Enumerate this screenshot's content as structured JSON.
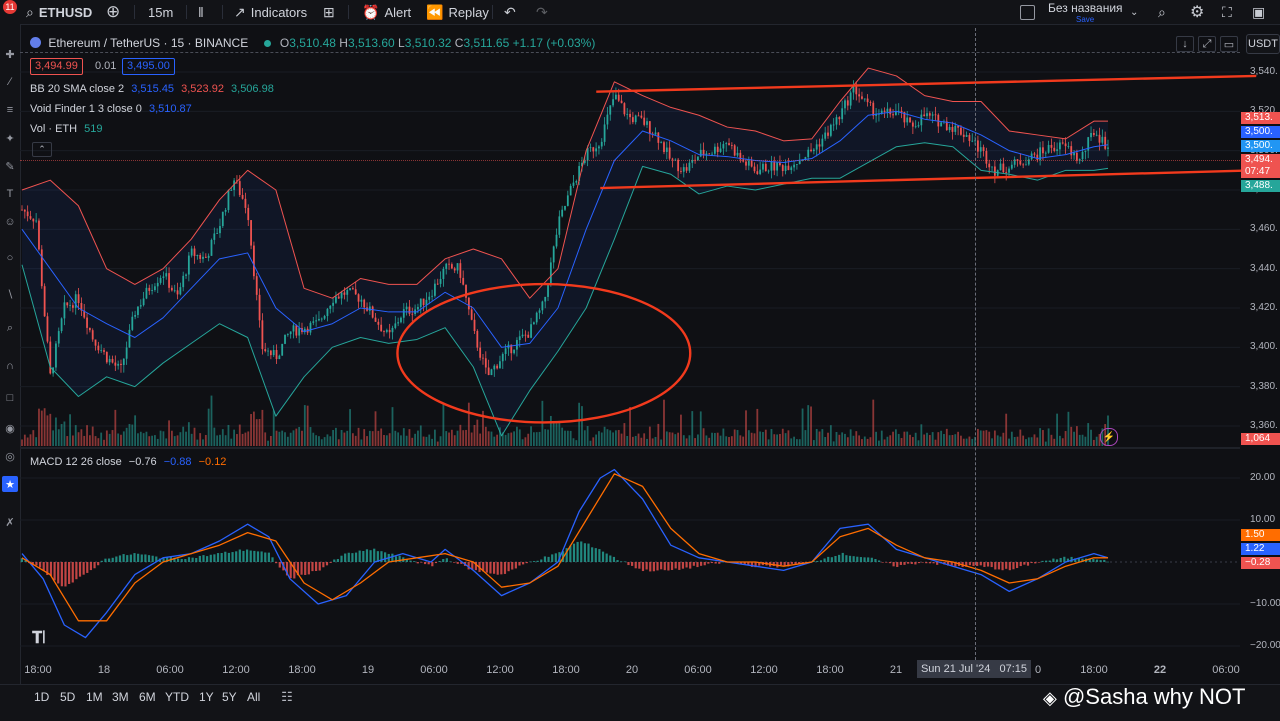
{
  "toolbar": {
    "badge": "11",
    "symbol": "ETHUSD",
    "interval": "15m",
    "indicators": "Indicators",
    "alert": "Alert",
    "replay": "Replay",
    "layout_name": "Без названия",
    "layout_save": "Save"
  },
  "legend": {
    "title": "Ethereum / TetherUS · 15 · BINANCE",
    "o_label": "O",
    "o_val": "3,510.48",
    "h_label": "H",
    "h_val": "3,513.60",
    "l_label": "L",
    "l_val": "3,510.32",
    "c_label": "C",
    "c_val": "3,511.65",
    "change": "+1.17 (+0.03%)",
    "sell_price": "3,494.99",
    "spread": "0.01",
    "buy_price": "3,495.00",
    "bb_label": "BB 20 SMA close 2",
    "bb_mid": "3,515.45",
    "bb_up": "3,523.92",
    "bb_low": "3,506.98",
    "vf_label": "Void Finder 1 3 close 0",
    "vf_val": "3,510.87",
    "vol_label": "Vol · ETH",
    "vol_val": "519",
    "macd_label": "MACD 12 26 close",
    "macd_hist": "−0.76",
    "macd_line": "−0.88",
    "macd_signal": "−0.12",
    "currency": "USDT"
  },
  "price_labels": {
    "p1": "3,513.",
    "p2": "3,500.",
    "p3": "3,500.",
    "p4": "3,494.",
    "p5": "07:47",
    "p6": "3,488.",
    "vol": "1,064",
    "m1": "1.50",
    "m2": "1.22",
    "m3": "−0.28"
  },
  "crosshair_label": "Sun 21 Jul '24   07:15",
  "ranges": [
    "1D",
    "5D",
    "1M",
    "3M",
    "6M",
    "YTD",
    "1Y",
    "5Y",
    "All"
  ],
  "watermark": "@Sasha why NOT",
  "colors": {
    "up": "#26a69a",
    "down": "#ef5350",
    "bb_mid": "#2962ff",
    "bb_band": "#ef5350",
    "bb_band_low": "#26a69a",
    "macd": "#2962ff",
    "signal": "#ff6d00",
    "trend": "#f23a1d",
    "background": "#0f1014"
  },
  "chart_data": [
    {
      "type": "candlestick",
      "title": "Ethereum / TetherUS · 15 · BINANCE",
      "ylim": [
        3350,
        3550
      ],
      "yticks": [
        "3,540.",
        "3,520.",
        "3,500.",
        "3,480.",
        "3,460.",
        "3,440.",
        "3,420.",
        "3,400.",
        "3,380.",
        "3,360."
      ],
      "ytick_values": [
        3540,
        3520,
        3500,
        3480,
        3460,
        3440,
        3420,
        3400,
        3380,
        3360
      ],
      "xticks": [
        "18:00",
        "18",
        "06:00",
        "12:00",
        "18:00",
        "19",
        "06:00",
        "12:00",
        "18:00",
        "20",
        "06:00",
        "12:00",
        "18:00",
        "21",
        "0",
        "18:00",
        "22",
        "06:00"
      ],
      "close_path": [
        [
          0,
          3470
        ],
        [
          10,
          3465
        ],
        [
          20,
          3385
        ],
        [
          30,
          3420
        ],
        [
          40,
          3425
        ],
        [
          50,
          3405
        ],
        [
          60,
          3395
        ],
        [
          70,
          3388
        ],
        [
          80,
          3418
        ],
        [
          90,
          3430
        ],
        [
          100,
          3438
        ],
        [
          110,
          3425
        ],
        [
          120,
          3448
        ],
        [
          130,
          3445
        ],
        [
          140,
          3462
        ],
        [
          150,
          3486
        ],
        [
          160,
          3470
        ],
        [
          170,
          3400
        ],
        [
          180,
          3395
        ],
        [
          190,
          3408
        ],
        [
          200,
          3410
        ],
        [
          210,
          3412
        ],
        [
          220,
          3425
        ],
        [
          230,
          3428
        ],
        [
          240,
          3425
        ],
        [
          250,
          3415
        ],
        [
          260,
          3405
        ],
        [
          270,
          3418
        ],
        [
          280,
          3420
        ],
        [
          290,
          3428
        ],
        [
          300,
          3440
        ],
        [
          310,
          3440
        ],
        [
          320,
          3408
        ],
        [
          330,
          3385
        ],
        [
          340,
          3395
        ],
        [
          350,
          3402
        ],
        [
          360,
          3408
        ],
        [
          370,
          3422
        ],
        [
          380,
          3462
        ],
        [
          390,
          3482
        ],
        [
          400,
          3498
        ],
        [
          410,
          3505
        ],
        [
          420,
          3528
        ],
        [
          430,
          3517
        ],
        [
          440,
          3515
        ],
        [
          450,
          3508
        ],
        [
          460,
          3495
        ],
        [
          470,
          3490
        ],
        [
          480,
          3498
        ],
        [
          490,
          3500
        ],
        [
          500,
          3505
        ],
        [
          510,
          3495
        ],
        [
          520,
          3490
        ],
        [
          530,
          3492
        ],
        [
          540,
          3492
        ],
        [
          550,
          3495
        ],
        [
          560,
          3500
        ],
        [
          570,
          3508
        ],
        [
          580,
          3518
        ],
        [
          590,
          3532
        ],
        [
          600,
          3522
        ],
        [
          610,
          3518
        ],
        [
          620,
          3520
        ],
        [
          630,
          3512
        ],
        [
          640,
          3518
        ],
        [
          650,
          3515
        ],
        [
          660,
          3512
        ],
        [
          670,
          3508
        ],
        [
          680,
          3500
        ],
        [
          690,
          3490
        ],
        [
          700,
          3492
        ],
        [
          710,
          3495
        ],
        [
          720,
          3498
        ],
        [
          730,
          3502
        ],
        [
          740,
          3502
        ],
        [
          750,
          3495
        ],
        [
          760,
          3510
        ],
        [
          770,
          3502
        ]
      ],
      "bb_basis": [
        [
          0,
          3460
        ],
        [
          20,
          3440
        ],
        [
          40,
          3420
        ],
        [
          60,
          3412
        ],
        [
          80,
          3405
        ],
        [
          100,
          3415
        ],
        [
          120,
          3430
        ],
        [
          140,
          3445
        ],
        [
          160,
          3448
        ],
        [
          180,
          3420
        ],
        [
          200,
          3408
        ],
        [
          220,
          3412
        ],
        [
          240,
          3420
        ],
        [
          260,
          3418
        ],
        [
          280,
          3418
        ],
        [
          300,
          3428
        ],
        [
          320,
          3420
        ],
        [
          340,
          3400
        ],
        [
          360,
          3402
        ],
        [
          380,
          3420
        ],
        [
          400,
          3460
        ],
        [
          420,
          3495
        ],
        [
          440,
          3510
        ],
        [
          460,
          3505
        ],
        [
          480,
          3498
        ],
        [
          500,
          3497
        ],
        [
          520,
          3495
        ],
        [
          540,
          3494
        ],
        [
          560,
          3496
        ],
        [
          580,
          3505
        ],
        [
          600,
          3518
        ],
        [
          620,
          3520
        ],
        [
          640,
          3516
        ],
        [
          660,
          3514
        ],
        [
          680,
          3508
        ],
        [
          700,
          3500
        ],
        [
          720,
          3496
        ],
        [
          740,
          3498
        ],
        [
          760,
          3502
        ],
        [
          770,
          3503
        ]
      ],
      "bb_upper": [
        [
          0,
          3480
        ],
        [
          20,
          3485
        ],
        [
          40,
          3472
        ],
        [
          60,
          3440
        ],
        [
          80,
          3432
        ],
        [
          100,
          3440
        ],
        [
          120,
          3455
        ],
        [
          140,
          3475
        ],
        [
          160,
          3490
        ],
        [
          180,
          3480
        ],
        [
          200,
          3430
        ],
        [
          220,
          3425
        ],
        [
          240,
          3435
        ],
        [
          260,
          3432
        ],
        [
          280,
          3432
        ],
        [
          300,
          3445
        ],
        [
          320,
          3450
        ],
        [
          340,
          3445
        ],
        [
          360,
          3425
        ],
        [
          380,
          3440
        ],
        [
          400,
          3500
        ],
        [
          420,
          3535
        ],
        [
          440,
          3528
        ],
        [
          460,
          3522
        ],
        [
          480,
          3518
        ],
        [
          500,
          3512
        ],
        [
          520,
          3510
        ],
        [
          540,
          3505
        ],
        [
          560,
          3506
        ],
        [
          580,
          3525
        ],
        [
          600,
          3542
        ],
        [
          620,
          3538
        ],
        [
          640,
          3528
        ],
        [
          660,
          3525
        ],
        [
          680,
          3525
        ],
        [
          700,
          3510
        ],
        [
          720,
          3508
        ],
        [
          740,
          3506
        ],
        [
          760,
          3515
        ],
        [
          770,
          3515
        ]
      ],
      "bb_lower": [
        [
          0,
          3442
        ],
        [
          20,
          3390
        ],
        [
          40,
          3375
        ],
        [
          60,
          3385
        ],
        [
          80,
          3380
        ],
        [
          100,
          3392
        ],
        [
          120,
          3402
        ],
        [
          140,
          3412
        ],
        [
          160,
          3405
        ],
        [
          180,
          3365
        ],
        [
          200,
          3385
        ],
        [
          220,
          3400
        ],
        [
          240,
          3405
        ],
        [
          260,
          3402
        ],
        [
          280,
          3404
        ],
        [
          300,
          3410
        ],
        [
          320,
          3390
        ],
        [
          340,
          3355
        ],
        [
          360,
          3378
        ],
        [
          380,
          3398
        ],
        [
          400,
          3420
        ],
        [
          420,
          3455
        ],
        [
          440,
          3492
        ],
        [
          460,
          3488
        ],
        [
          480,
          3478
        ],
        [
          500,
          3482
        ],
        [
          520,
          3480
        ],
        [
          540,
          3483
        ],
        [
          560,
          3486
        ],
        [
          580,
          3486
        ],
        [
          600,
          3494
        ],
        [
          620,
          3502
        ],
        [
          640,
          3504
        ],
        [
          660,
          3502
        ],
        [
          680,
          3490
        ],
        [
          700,
          3488
        ],
        [
          720,
          3485
        ],
        [
          740,
          3490
        ],
        [
          760,
          3490
        ],
        [
          770,
          3491
        ]
      ],
      "trendlines": [
        {
          "from": [
            410,
            3530
          ],
          "to": [
            790,
            3538
          ]
        },
        {
          "from": [
            410,
            3481
          ],
          "to": [
            790,
            3490
          ]
        }
      ],
      "circle": {
        "center": [
          370,
          3397
        ],
        "radius_x": 48,
        "radius_y": 26
      }
    },
    {
      "type": "bar",
      "title": "Vol · ETH",
      "note": "volume histogram below price"
    },
    {
      "type": "line",
      "title": "MACD 12 26 close",
      "ylim": [
        -22,
        23
      ],
      "yticks": [
        "20.00",
        "10.00",
        "−10.00",
        "−20.00"
      ],
      "ytick_values": [
        20,
        10,
        -10,
        -20
      ],
      "macd_line": [
        [
          0,
          2
        ],
        [
          15,
          -4
        ],
        [
          30,
          -15
        ],
        [
          45,
          -18
        ],
        [
          60,
          -12
        ],
        [
          80,
          -3
        ],
        [
          100,
          1
        ],
        [
          120,
          2
        ],
        [
          140,
          5
        ],
        [
          160,
          9
        ],
        [
          175,
          6
        ],
        [
          190,
          -4
        ],
        [
          210,
          -10
        ],
        [
          230,
          -8
        ],
        [
          250,
          0
        ],
        [
          270,
          2
        ],
        [
          290,
          0
        ],
        [
          300,
          3
        ],
        [
          320,
          -2
        ],
        [
          340,
          -8
        ],
        [
          360,
          -5
        ],
        [
          380,
          0
        ],
        [
          395,
          12
        ],
        [
          410,
          20
        ],
        [
          420,
          22
        ],
        [
          440,
          15
        ],
        [
          460,
          4
        ],
        [
          480,
          1
        ],
        [
          500,
          0
        ],
        [
          520,
          -1
        ],
        [
          540,
          -2
        ],
        [
          560,
          0
        ],
        [
          580,
          8
        ],
        [
          600,
          9
        ],
        [
          620,
          3
        ],
        [
          640,
          1
        ],
        [
          660,
          -1
        ],
        [
          680,
          -3
        ],
        [
          700,
          -7
        ],
        [
          720,
          -4
        ],
        [
          740,
          0
        ],
        [
          760,
          2
        ],
        [
          770,
          1
        ]
      ],
      "signal_line": [
        [
          0,
          1
        ],
        [
          20,
          -3
        ],
        [
          40,
          -14
        ],
        [
          60,
          -14
        ],
        [
          80,
          -5
        ],
        [
          100,
          0
        ],
        [
          120,
          2
        ],
        [
          140,
          4
        ],
        [
          160,
          7
        ],
        [
          180,
          5
        ],
        [
          200,
          -5
        ],
        [
          220,
          -9
        ],
        [
          240,
          -5
        ],
        [
          260,
          0
        ],
        [
          280,
          1
        ],
        [
          300,
          2
        ],
        [
          320,
          0
        ],
        [
          340,
          -6
        ],
        [
          360,
          -5
        ],
        [
          380,
          -1
        ],
        [
          400,
          10
        ],
        [
          420,
          21
        ],
        [
          440,
          18
        ],
        [
          460,
          8
        ],
        [
          480,
          2
        ],
        [
          500,
          0
        ],
        [
          520,
          0
        ],
        [
          540,
          -1
        ],
        [
          560,
          0
        ],
        [
          580,
          6
        ],
        [
          600,
          8
        ],
        [
          620,
          4
        ],
        [
          640,
          1
        ],
        [
          660,
          0
        ],
        [
          680,
          -2
        ],
        [
          700,
          -5
        ],
        [
          720,
          -4
        ],
        [
          740,
          -1
        ],
        [
          760,
          1
        ],
        [
          770,
          1
        ]
      ],
      "histogram": [
        [
          0,
          1
        ],
        [
          15,
          -2
        ],
        [
          30,
          -6
        ],
        [
          45,
          -3
        ],
        [
          60,
          1
        ],
        [
          80,
          2
        ],
        [
          100,
          1
        ],
        [
          120,
          1
        ],
        [
          140,
          2
        ],
        [
          160,
          3
        ],
        [
          175,
          2
        ],
        [
          190,
          -4
        ],
        [
          210,
          -2
        ],
        [
          230,
          2
        ],
        [
          250,
          3
        ],
        [
          270,
          1
        ],
        [
          290,
          -1
        ],
        [
          300,
          1
        ],
        [
          320,
          -2
        ],
        [
          340,
          -3
        ],
        [
          360,
          0
        ],
        [
          380,
          2
        ],
        [
          395,
          5
        ],
        [
          410,
          3
        ],
        [
          420,
          1
        ],
        [
          440,
          -2
        ],
        [
          460,
          -2
        ],
        [
          480,
          -1
        ],
        [
          500,
          0
        ],
        [
          520,
          -1
        ],
        [
          540,
          -1
        ],
        [
          560,
          0
        ],
        [
          580,
          2
        ],
        [
          600,
          1
        ],
        [
          620,
          -1
        ],
        [
          640,
          0
        ],
        [
          660,
          -1
        ],
        [
          680,
          -1
        ],
        [
          700,
          -2
        ],
        [
          720,
          0
        ],
        [
          740,
          1
        ],
        [
          760,
          1
        ],
        [
          770,
          0
        ]
      ]
    }
  ]
}
